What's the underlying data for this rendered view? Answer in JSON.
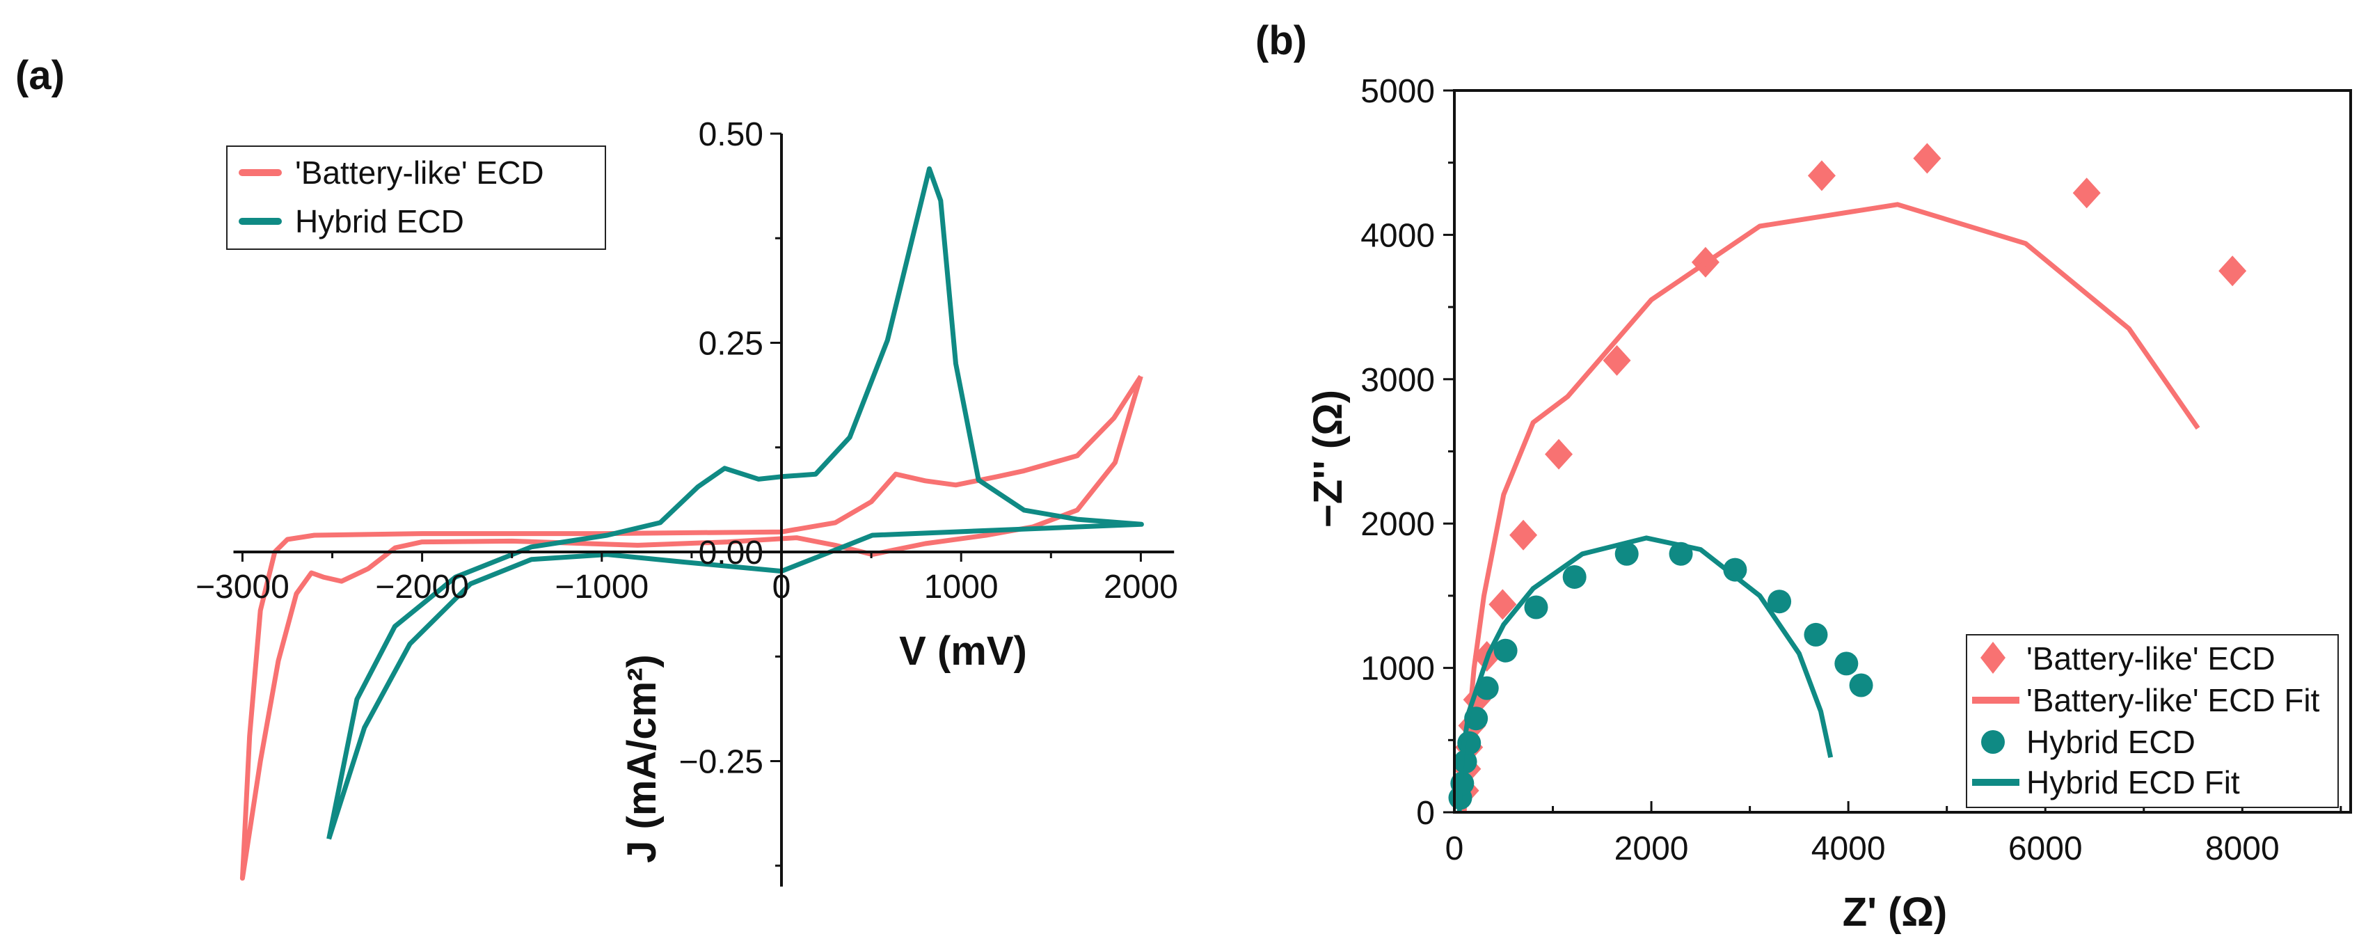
{
  "colors": {
    "battery": "#F87272",
    "hybrid": "#0F8A84",
    "axis": "#111111"
  },
  "chart_data": [
    {
      "panel_label": "(a)",
      "type": "line",
      "xlabel": "V (mV)",
      "ylabel": "J (mA/cm²)",
      "xlim": [
        -3050,
        2100
      ],
      "ylim": [
        -0.4,
        0.5
      ],
      "xticks": [
        -3000,
        -2000,
        -1000,
        0,
        1000,
        2000
      ],
      "xtick_labels": [
        "−3000",
        "−2000",
        "−1000",
        "0",
        "1000",
        "2000"
      ],
      "yticks": [
        -0.25,
        0.0,
        0.25,
        0.5
      ],
      "ytick_labels": [
        "−0.25",
        "0.00",
        "0.25",
        "0.50"
      ],
      "legend_position": "top-left",
      "series": [
        {
          "name": "'Battery-like' ECD",
          "color_key": "battery",
          "points": [
            [
              2000,
              0.21
            ],
            [
              1857,
              0.107
            ],
            [
              1646,
              0.05
            ],
            [
              1400,
              0.03
            ],
            [
              1139,
              0.02
            ],
            [
              800,
              0.01
            ],
            [
              506,
              -0.003
            ],
            [
              300,
              0.008
            ],
            [
              84,
              0.017
            ],
            [
              -300,
              0.012
            ],
            [
              -800,
              0.008
            ],
            [
              -1500,
              0.013
            ],
            [
              -2000,
              0.012
            ],
            [
              -2150,
              0.005
            ],
            [
              -2300,
              -0.02
            ],
            [
              -2448,
              -0.035
            ],
            [
              -2550,
              -0.03
            ],
            [
              -2616,
              -0.025
            ],
            [
              -2700,
              -0.05
            ],
            [
              -2800,
              -0.13
            ],
            [
              -2900,
              -0.25
            ],
            [
              -3000,
              -0.39
            ],
            [
              -2960,
              -0.22
            ],
            [
              -2900,
              -0.07
            ],
            [
              -2820,
              0.0
            ],
            [
              -2750,
              0.015
            ],
            [
              -2600,
              0.02
            ],
            [
              -2000,
              0.022
            ],
            [
              -1000,
              0.022
            ],
            [
              0,
              0.024
            ],
            [
              300,
              0.035
            ],
            [
              500,
              0.06
            ],
            [
              636,
              0.093
            ],
            [
              800,
              0.085
            ],
            [
              970,
              0.08
            ],
            [
              1200,
              0.09
            ],
            [
              1350,
              0.097
            ],
            [
              1646,
              0.115
            ],
            [
              1850,
              0.16
            ],
            [
              2000,
              0.21
            ]
          ]
        },
        {
          "name": "Hybrid ECD",
          "color_key": "hybrid",
          "points": [
            [
              -2519,
              -0.343
            ],
            [
              -2363,
              -0.176
            ],
            [
              -2152,
              -0.089
            ],
            [
              -1814,
              -0.03
            ],
            [
              -1392,
              0.006
            ],
            [
              -970,
              0.02
            ],
            [
              -675,
              0.035
            ],
            [
              -464,
              0.078
            ],
            [
              -316,
              0.1
            ],
            [
              -127,
              0.087
            ],
            [
              0,
              0.09
            ],
            [
              190,
              0.093
            ],
            [
              380,
              0.137
            ],
            [
              590,
              0.253
            ],
            [
              823,
              0.458
            ],
            [
              886,
              0.42
            ],
            [
              970,
              0.225
            ],
            [
              1097,
              0.086
            ],
            [
              1350,
              0.05
            ],
            [
              1646,
              0.039
            ],
            [
              2004,
              0.033
            ],
            [
              506,
              0.02
            ],
            [
              295,
              0.002
            ],
            [
              0,
              -0.023
            ],
            [
              -549,
              -0.012
            ],
            [
              -970,
              -0.003
            ],
            [
              -1392,
              -0.009
            ],
            [
              -1730,
              -0.038
            ],
            [
              -2068,
              -0.11
            ],
            [
              -2321,
              -0.21
            ],
            [
              -2519,
              -0.343
            ]
          ]
        }
      ]
    },
    {
      "panel_label": "(b)",
      "type": "scatter",
      "xlabel": "Z' (Ω)",
      "ylabel": "−Z'' (Ω)",
      "xlim": [
        0,
        9100
      ],
      "ylim": [
        0,
        5000
      ],
      "xticks": [
        0,
        2000,
        4000,
        6000,
        8000
      ],
      "xtick_labels": [
        "0",
        "2000",
        "4000",
        "6000",
        "8000"
      ],
      "yticks": [
        0,
        1000,
        2000,
        3000,
        4000,
        5000
      ],
      "ytick_labels": [
        "0",
        "1000",
        "2000",
        "3000",
        "4000",
        "5000"
      ],
      "legend_position": "bottom-right",
      "series": [
        {
          "name": "'Battery-like' ECD",
          "color_key": "battery",
          "marker": "diamond",
          "points": [
            [
              110,
              150
            ],
            [
              130,
              300
            ],
            [
              150,
              450
            ],
            [
              180,
              600
            ],
            [
              230,
              780
            ],
            [
              330,
              1080
            ],
            [
              490,
              1440
            ],
            [
              700,
              1920
            ],
            [
              1060,
              2480
            ],
            [
              1650,
              3130
            ],
            [
              2550,
              3810
            ],
            [
              3730,
              4410
            ],
            [
              4800,
              4530
            ],
            [
              6420,
              4290
            ],
            [
              7900,
              3750
            ]
          ]
        },
        {
          "name": "'Battery-like' ECD Fit",
          "color_key": "battery",
          "marker": "line",
          "points": [
            [
              100,
              0
            ],
            [
              120,
              400
            ],
            [
              200,
              1000
            ],
            [
              300,
              1500
            ],
            [
              500,
              2200
            ],
            [
              800,
              2700
            ],
            [
              1150,
              2880
            ],
            [
              2000,
              3550
            ],
            [
              3100,
              4060
            ],
            [
              4500,
              4210
            ],
            [
              5800,
              3940
            ],
            [
              6850,
              3350
            ],
            [
              7550,
              2660
            ]
          ]
        },
        {
          "name": "Hybrid ECD",
          "color_key": "hybrid",
          "marker": "circle",
          "points": [
            [
              60,
              100
            ],
            [
              80,
              200
            ],
            [
              110,
              350
            ],
            [
              150,
              480
            ],
            [
              220,
              650
            ],
            [
              330,
              860
            ],
            [
              520,
              1120
            ],
            [
              830,
              1420
            ],
            [
              1220,
              1630
            ],
            [
              1750,
              1790
            ],
            [
              2300,
              1790
            ],
            [
              2850,
              1680
            ],
            [
              3300,
              1460
            ],
            [
              3670,
              1230
            ],
            [
              3980,
              1030
            ],
            [
              4130,
              880
            ]
          ]
        },
        {
          "name": "Hybrid ECD Fit",
          "color_key": "hybrid",
          "marker": "line",
          "points": [
            [
              50,
              0
            ],
            [
              80,
              400
            ],
            [
              150,
              700
            ],
            [
              350,
              1100
            ],
            [
              500,
              1300
            ],
            [
              800,
              1550
            ],
            [
              1300,
              1790
            ],
            [
              1950,
              1900
            ],
            [
              2500,
              1820
            ],
            [
              3100,
              1500
            ],
            [
              3500,
              1100
            ],
            [
              3720,
              700
            ],
            [
              3820,
              380
            ]
          ]
        }
      ]
    }
  ]
}
